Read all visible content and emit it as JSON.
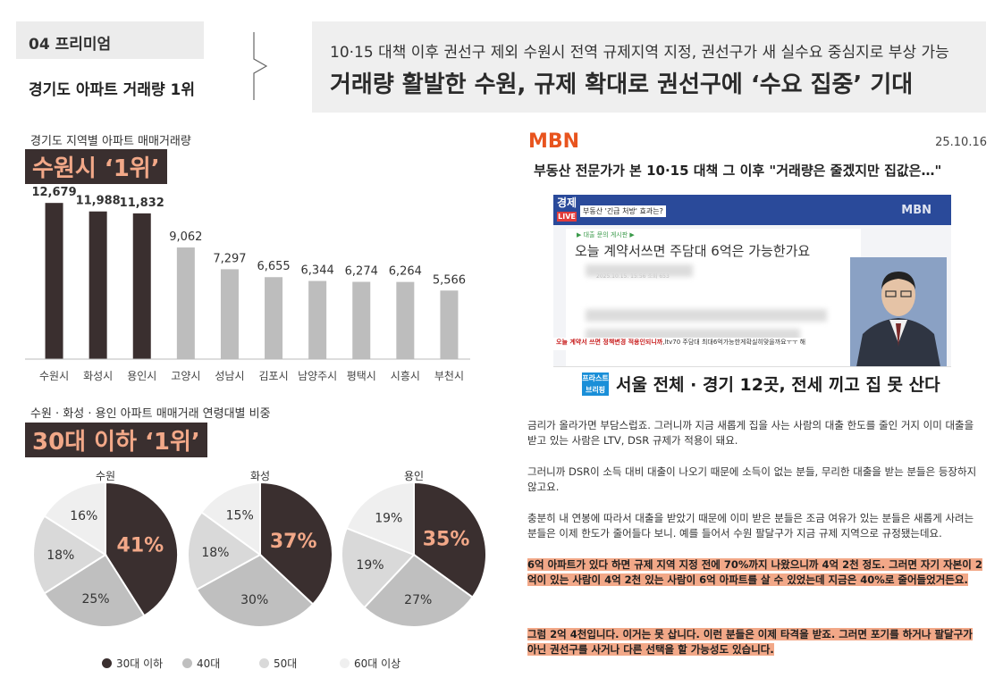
{
  "header": {
    "tag": "04 프리미엄",
    "subtitle": "경기도 아파트 거래량 1위",
    "hero_sub": "10·15 대책 이후 권선구 제외 수원시 전역 규제지역 지정, 권선구가 새 실수요 중심지로 부상 가능",
    "hero_title": "거래량 활발한 수원, 규제 확대로 권선구에 ‘수요 집중’ 기대"
  },
  "bar_section": {
    "caption": "경기도 지역별 아파트 매매거래량",
    "highlight": "수원시 ‘1위’"
  },
  "pie_section": {
    "caption": "수원 · 화성 · 용인 아파트 매매거래 연령대별 비중",
    "highlight": "30대 이하 ‘1위’"
  },
  "colors": {
    "dark": "#3a2f2f",
    "gray": "#bdbdbd",
    "accent": "#f2a888",
    "mbn": "#e8541e",
    "pie": [
      "#3a2f2f",
      "#bfbfbf",
      "#d9d9d9",
      "#efefef"
    ]
  },
  "chart_data": [
    {
      "type": "bar",
      "title": "경기도 지역별 아파트 매매거래량",
      "categories": [
        "수원시",
        "화성시",
        "용인시",
        "고양시",
        "성남시",
        "김포시",
        "남양주시",
        "평택시",
        "시흥시",
        "부천시"
      ],
      "values": [
        12679,
        11988,
        11832,
        9062,
        7297,
        6655,
        6344,
        6274,
        6264,
        5566
      ],
      "value_labels": [
        "12,679",
        "11,988",
        "11,832",
        "9,062",
        "7,297",
        "6,655",
        "6,344",
        "6,274",
        "6,264",
        "5,566"
      ],
      "highlighted": [
        true,
        true,
        true,
        false,
        false,
        false,
        false,
        false,
        false,
        false
      ],
      "ylim": [
        0,
        14000
      ],
      "grid": false
    },
    {
      "type": "pie",
      "title": "수원 · 화성 · 용인 아파트 매매거래 연령대별 비중",
      "categories": [
        "30대 이하",
        "40대",
        "50대",
        "60대 이상"
      ],
      "series": [
        {
          "name": "수원",
          "values": [
            41,
            25,
            18,
            16
          ]
        },
        {
          "name": "화성",
          "values": [
            37,
            30,
            18,
            15
          ]
        },
        {
          "name": "용인",
          "values": [
            35,
            27,
            19,
            19
          ]
        }
      ],
      "legend_position": "bottom"
    }
  ],
  "legend": [
    "30대 이하",
    "40대",
    "50대",
    "60대 이상"
  ],
  "mbn": {
    "logo": "MBN",
    "date": "25.10.16",
    "headline": "부동산 전문가가 본 10·15 대책 그 이후 \"거래량은 줄겠지만 집값은…\"",
    "video": {
      "badge": "경제",
      "badge_live": "LIVE",
      "topic": "부동산 '긴급 처방' 효과는?",
      "logo": "MBN",
      "crumb": "▶ 대출 문의 게시판 ▶",
      "post_title": "오늘 계약서쓰면 주담대 6억은 가능한가요",
      "post_meta": "2025.10.15. 15:56  조회 653",
      "ticker_red": "오늘 계약서 쓰면 정책변경 적용인되니까",
      "ticker_rest": ",ltv70 주담대 최대6억가능한게확실히맞을까요ㅜㅜ 해",
      "brief": "프라스트 브리핑",
      "banner": "서울 전체 · 경기 12곳, 전세 끼고 집 못 산다"
    },
    "paragraphs": [
      "금리가 올라가면 부담스럽죠. 그러니까 지금 새롭게 집을 사는 사람의 대출 한도를 줄인 거지 이미 대출을 받고 있는 사람은 LTV, DSR 규제가 적용이 돼요.",
      "그러니까 DSR이 소득 대비 대출이 나오기 때문에 소득이 없는 분들, 무리한 대출을 받는 분들은 등장하지 않고요.",
      "충분히 내 연봉에 따라서 대출을 받았기 때문에 이미 받은 분들은 조금 여유가 있는 분들은 새롭게 사려는 분들은 이제 한도가 줄어들다 보니. 예를 들어서 수원 팔달구가 지금 규제 지역으로 규정됐는데요.",
      "6억 아파트가 있다 하면 규제 지역 지정 전에 70%까지 나왔으니까 4억 2천 정도. 그러면 자기 자본이 2억이 있는 사람이 4억 2천 있는 사람이 6억 아파트를 살 수 있었는데 지금은 40%로 줄어들었거든요.",
      "그럼 2억 4천입니다. 이거는 못 삽니다. 이런 분들은 이제 타격을 받죠. 그러면 포기를 하거나 팔달구가 아닌 권선구를 사거나 다른 선택을 할 가능성도 있습니다."
    ]
  }
}
